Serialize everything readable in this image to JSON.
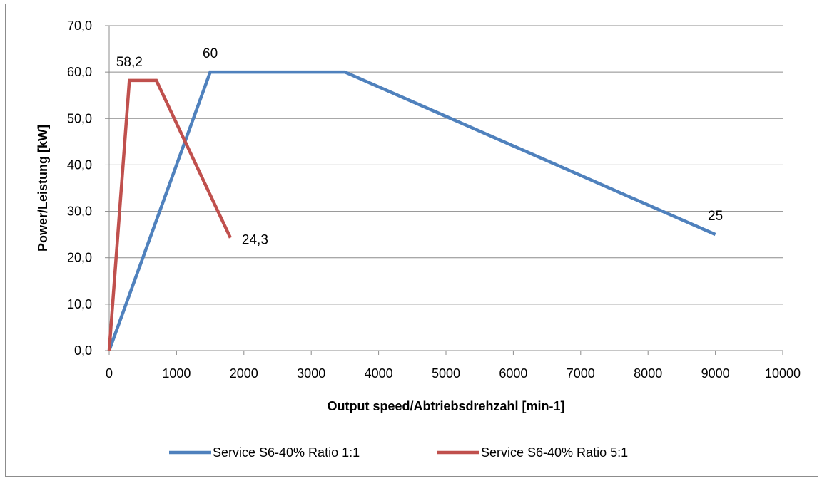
{
  "chart_data": {
    "type": "line",
    "title": "",
    "xlabel": "Output speed/Abtriebsdrehzahl [min-1]",
    "ylabel": "Power/Leistung  [kW]",
    "xlim": [
      0,
      10000
    ],
    "ylim": [
      0,
      70
    ],
    "x_ticks": [
      "0",
      "1000",
      "2000",
      "3000",
      "4000",
      "5000",
      "6000",
      "7000",
      "8000",
      "9000",
      "10000"
    ],
    "y_ticks": [
      "0,0",
      "10,0",
      "20,0",
      "30,0",
      "40,0",
      "50,0",
      "60,0",
      "70,0"
    ],
    "grid": "horizontal",
    "legend_position": "bottom",
    "series": [
      {
        "name": "Service S6-40% Ratio 1:1",
        "color": "#4f81bd",
        "points": [
          [
            0,
            0
          ],
          [
            1500,
            60
          ],
          [
            3500,
            60
          ],
          [
            9000,
            25
          ]
        ],
        "labels": [
          {
            "x": 1500,
            "y": 60,
            "text": "60",
            "pos": "above"
          },
          {
            "x": 9000,
            "y": 25,
            "text": "25",
            "pos": "above"
          }
        ]
      },
      {
        "name": "Service S6-40% Ratio 5:1",
        "color": "#c0504d",
        "points": [
          [
            0,
            0
          ],
          [
            300,
            58.2
          ],
          [
            700,
            58.2
          ],
          [
            1800,
            24.3
          ]
        ],
        "labels": [
          {
            "x": 300,
            "y": 58.2,
            "text": "58,2",
            "pos": "above"
          },
          {
            "x": 1800,
            "y": 24.3,
            "text": "24,3",
            "pos": "right"
          }
        ]
      }
    ]
  }
}
